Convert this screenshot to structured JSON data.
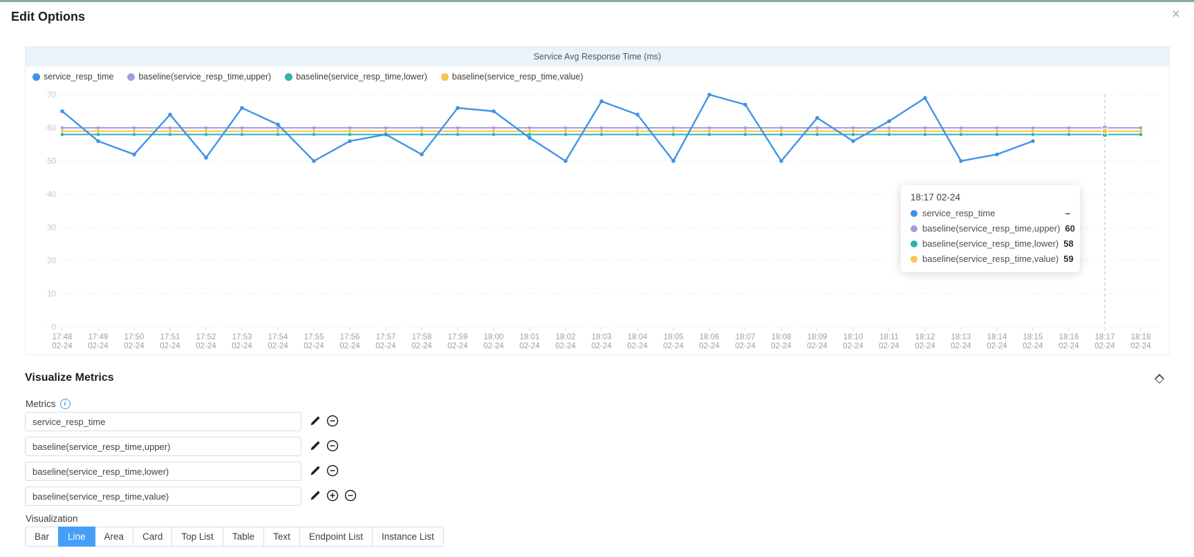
{
  "page": {
    "title": "Edit Options",
    "close_label": "×"
  },
  "colors": {
    "top_border_green": "#83ab9b",
    "chart_header_bg": "#e9f3fb",
    "series_blue": "#3e93e7",
    "series_purple": "#a29ddd",
    "series_teal": "#2fb3ab",
    "series_yellow": "#f5c64d",
    "active_button_blue": "#459ff8",
    "grid_line": "#e7e9ec",
    "y_label": "#c2c6cc",
    "x_label": "#9aa0a8",
    "axis_pointer": "#b3b7bf"
  },
  "chart": {
    "title": "Service Avg Response Time (ms)"
  },
  "chart_data": {
    "type": "line",
    "title": "Service Avg Response Time (ms)",
    "x": [
      "17:48",
      "17:49",
      "17:50",
      "17:51",
      "17:52",
      "17:53",
      "17:54",
      "17:55",
      "17:56",
      "17:57",
      "17:58",
      "17:59",
      "18:00",
      "18:01",
      "18:02",
      "18:03",
      "18:04",
      "18:05",
      "18:06",
      "18:07",
      "18:08",
      "18:09",
      "18:10",
      "18:11",
      "18:12",
      "18:13",
      "18:14",
      "18:15",
      "18:16",
      "18:17",
      "18:18"
    ],
    "x_sub_label": "02-24",
    "series": [
      {
        "name": "service_resp_time",
        "color": "#3e93e7",
        "values": [
          65,
          56,
          52,
          64,
          51,
          66,
          61,
          50,
          56,
          58,
          52,
          66,
          65,
          57,
          50,
          68,
          64,
          50,
          70,
          67,
          50,
          63,
          56,
          62,
          69,
          50,
          52,
          56,
          null,
          null,
          null
        ]
      },
      {
        "name": "baseline(service_resp_time,upper)",
        "color": "#a29ddd",
        "values": [
          60,
          60,
          60,
          60,
          60,
          60,
          60,
          60,
          60,
          60,
          60,
          60,
          60,
          60,
          60,
          60,
          60,
          60,
          60,
          60,
          60,
          60,
          60,
          60,
          60,
          60,
          60,
          60,
          60,
          60,
          60
        ]
      },
      {
        "name": "baseline(service_resp_time,lower)",
        "color": "#2fb3ab",
        "values": [
          58,
          58,
          58,
          58,
          58,
          58,
          58,
          58,
          58,
          58,
          58,
          58,
          58,
          58,
          58,
          58,
          58,
          58,
          58,
          58,
          58,
          58,
          58,
          58,
          58,
          58,
          58,
          58,
          58,
          58,
          58
        ]
      },
      {
        "name": "baseline(service_resp_time,value)",
        "color": "#f5c64d",
        "values": [
          59,
          59,
          59,
          59,
          59,
          59,
          59,
          59,
          59,
          59,
          59,
          59,
          59,
          59,
          59,
          59,
          59,
          59,
          59,
          59,
          59,
          59,
          59,
          59,
          59,
          59,
          59,
          59,
          59,
          59,
          59
        ]
      }
    ],
    "ylim": [
      0,
      70
    ],
    "yticks": [
      0,
      10,
      20,
      30,
      40,
      50,
      60,
      70
    ],
    "grid": true,
    "legend_position": "top-left",
    "axis_pointer_index": 29
  },
  "tooltip": {
    "title": "18:17 02-24",
    "rows": [
      {
        "label": "service_resp_time",
        "value": "–",
        "color": "#3e93e7"
      },
      {
        "label": "baseline(service_resp_time,upper)",
        "value": "60",
        "color": "#a29ddd"
      },
      {
        "label": "baseline(service_resp_time,lower)",
        "value": "58",
        "color": "#2fb3ab"
      },
      {
        "label": "baseline(service_resp_time,value)",
        "value": "59",
        "color": "#f5c64d"
      }
    ]
  },
  "visualize_metrics": {
    "heading": "Visualize Metrics",
    "metrics_label": "Metrics",
    "metrics": [
      {
        "value": "service_resp_time",
        "actions": [
          "edit",
          "remove"
        ]
      },
      {
        "value": "baseline(service_resp_time,upper)",
        "actions": [
          "edit",
          "remove"
        ]
      },
      {
        "value": "baseline(service_resp_time,lower)",
        "actions": [
          "edit",
          "remove"
        ]
      },
      {
        "value": "baseline(service_resp_time,value)",
        "actions": [
          "edit",
          "add",
          "remove"
        ]
      }
    ],
    "visualization_label": "Visualization",
    "visualization_options": [
      {
        "label": "Bar",
        "active": false
      },
      {
        "label": "Line",
        "active": true
      },
      {
        "label": "Area",
        "active": false
      },
      {
        "label": "Card",
        "active": false
      },
      {
        "label": "Top List",
        "active": false
      },
      {
        "label": "Table",
        "active": false
      },
      {
        "label": "Text",
        "active": false
      },
      {
        "label": "Endpoint List",
        "active": false
      },
      {
        "label": "Instance List",
        "active": false
      }
    ]
  }
}
